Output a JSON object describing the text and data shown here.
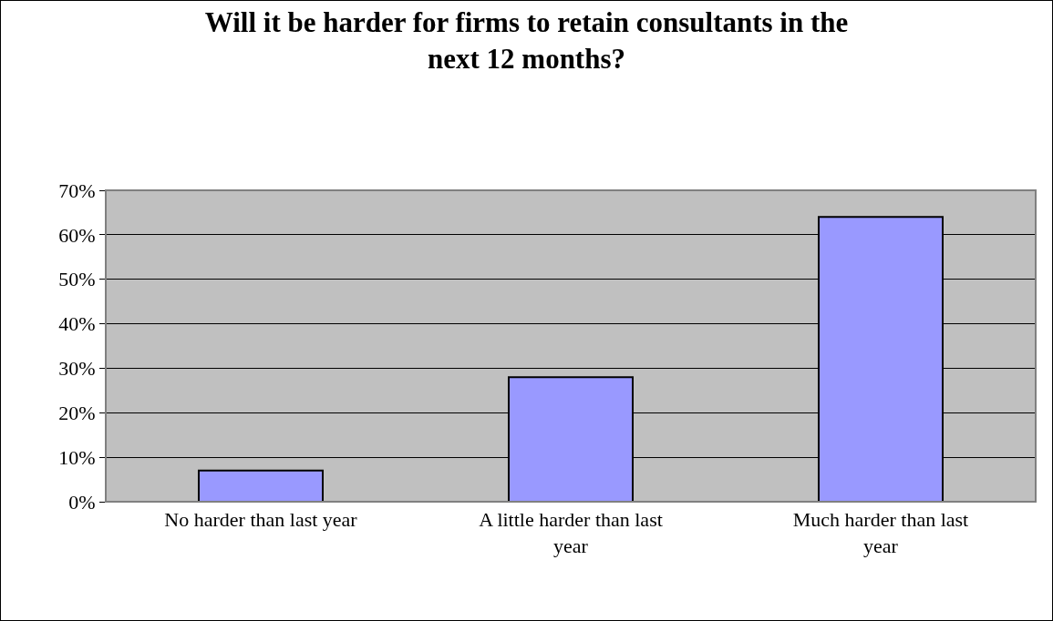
{
  "chart_data": {
    "type": "bar",
    "title": "Will it be harder for firms to retain consultants in the next 12 months?",
    "categories": [
      "No harder than last year",
      "A little harder than last year",
      "Much harder than last year"
    ],
    "values": [
      7,
      28,
      64
    ],
    "color": "#9999ff",
    "ylim": [
      0,
      70
    ],
    "yticks": [
      {
        "value": 0,
        "label": "0%"
      },
      {
        "value": 10,
        "label": "10%"
      },
      {
        "value": 20,
        "label": "20%"
      },
      {
        "value": 30,
        "label": "30%"
      },
      {
        "value": 40,
        "label": "40%"
      },
      {
        "value": 50,
        "label": "50%"
      },
      {
        "value": 60,
        "label": "60%"
      },
      {
        "value": 70,
        "label": "70%"
      }
    ],
    "grid": "y",
    "legend": false
  }
}
